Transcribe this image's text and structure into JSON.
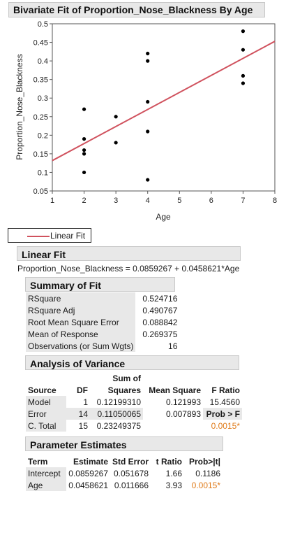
{
  "colors": {
    "fit_line": "#d0525e",
    "significant": "#e07b1a",
    "header_bg": "#e8e8e8"
  },
  "report": {
    "title": "Bivariate Fit of Proportion_Nose_Blackness By Age"
  },
  "chart_data": {
    "type": "scatter",
    "xlabel": "Age",
    "ylabel": "Proportion_Nose_Blackness",
    "xlim": [
      1,
      8
    ],
    "ylim": [
      0.05,
      0.5
    ],
    "xticks": [
      "1",
      "2",
      "3",
      "4",
      "5",
      "6",
      "7",
      "8"
    ],
    "yticks": [
      "0.05",
      "0.1",
      "0.15",
      "0.2",
      "0.25",
      "0.3",
      "0.35",
      "0.4",
      "0.45",
      "0.5"
    ],
    "grid": false,
    "points": [
      [
        2,
        0.27
      ],
      [
        2,
        0.19
      ],
      [
        2,
        0.16
      ],
      [
        2,
        0.15
      ],
      [
        2,
        0.1
      ],
      [
        3,
        0.25
      ],
      [
        3,
        0.18
      ],
      [
        4,
        0.42
      ],
      [
        4,
        0.4
      ],
      [
        4,
        0.29
      ],
      [
        4,
        0.21
      ],
      [
        4,
        0.08
      ],
      [
        7,
        0.48
      ],
      [
        7,
        0.43
      ],
      [
        7,
        0.36
      ],
      [
        7,
        0.34
      ]
    ],
    "fit_line": {
      "intercept": 0.0859267,
      "slope": 0.0458621
    }
  },
  "legend": {
    "label": "Linear Fit"
  },
  "linear_fit": {
    "header": "Linear Fit",
    "equation": "Proportion_Nose_Blackness = 0.0859267 + 0.0458621*Age"
  },
  "summary_of_fit": {
    "header": "Summary of Fit",
    "rows": [
      {
        "label": "RSquare",
        "value": "0.524716"
      },
      {
        "label": "RSquare Adj",
        "value": "0.490767"
      },
      {
        "label": "Root Mean Square Error",
        "value": "0.088842"
      },
      {
        "label": "Mean of Response",
        "value": "0.269375"
      },
      {
        "label": "Observations (or Sum Wgts)",
        "value": "16"
      }
    ]
  },
  "anova": {
    "header": "Analysis of Variance",
    "col_sum_of": "Sum of",
    "col_source": "Source",
    "col_df": "DF",
    "col_squares": "Squares",
    "col_mean_square": "Mean Square",
    "col_f_ratio": "F Ratio",
    "prob_f_label": "Prob > F",
    "rows": [
      {
        "source": "Model",
        "df": "1",
        "ss": "0.12199310",
        "ms": "0.121993",
        "f": "15.4560"
      },
      {
        "source": "Error",
        "df": "14",
        "ss": "0.11050065",
        "ms": "0.007893"
      },
      {
        "source": "C. Total",
        "df": "15",
        "ss": "0.23249375"
      }
    ],
    "prob_f": "0.0015*"
  },
  "parameter_estimates": {
    "header": "Parameter Estimates",
    "columns": [
      "Term",
      "Estimate",
      "Std Error",
      "t Ratio",
      "Prob>|t|"
    ],
    "rows": [
      {
        "term": "Intercept",
        "estimate": "0.0859267",
        "std_error": "0.051678",
        "t_ratio": "1.66",
        "prob": "0.1186"
      },
      {
        "term": "Age",
        "estimate": "0.0458621",
        "std_error": "0.011666",
        "t_ratio": "3.93",
        "prob": "0.0015*"
      }
    ]
  }
}
